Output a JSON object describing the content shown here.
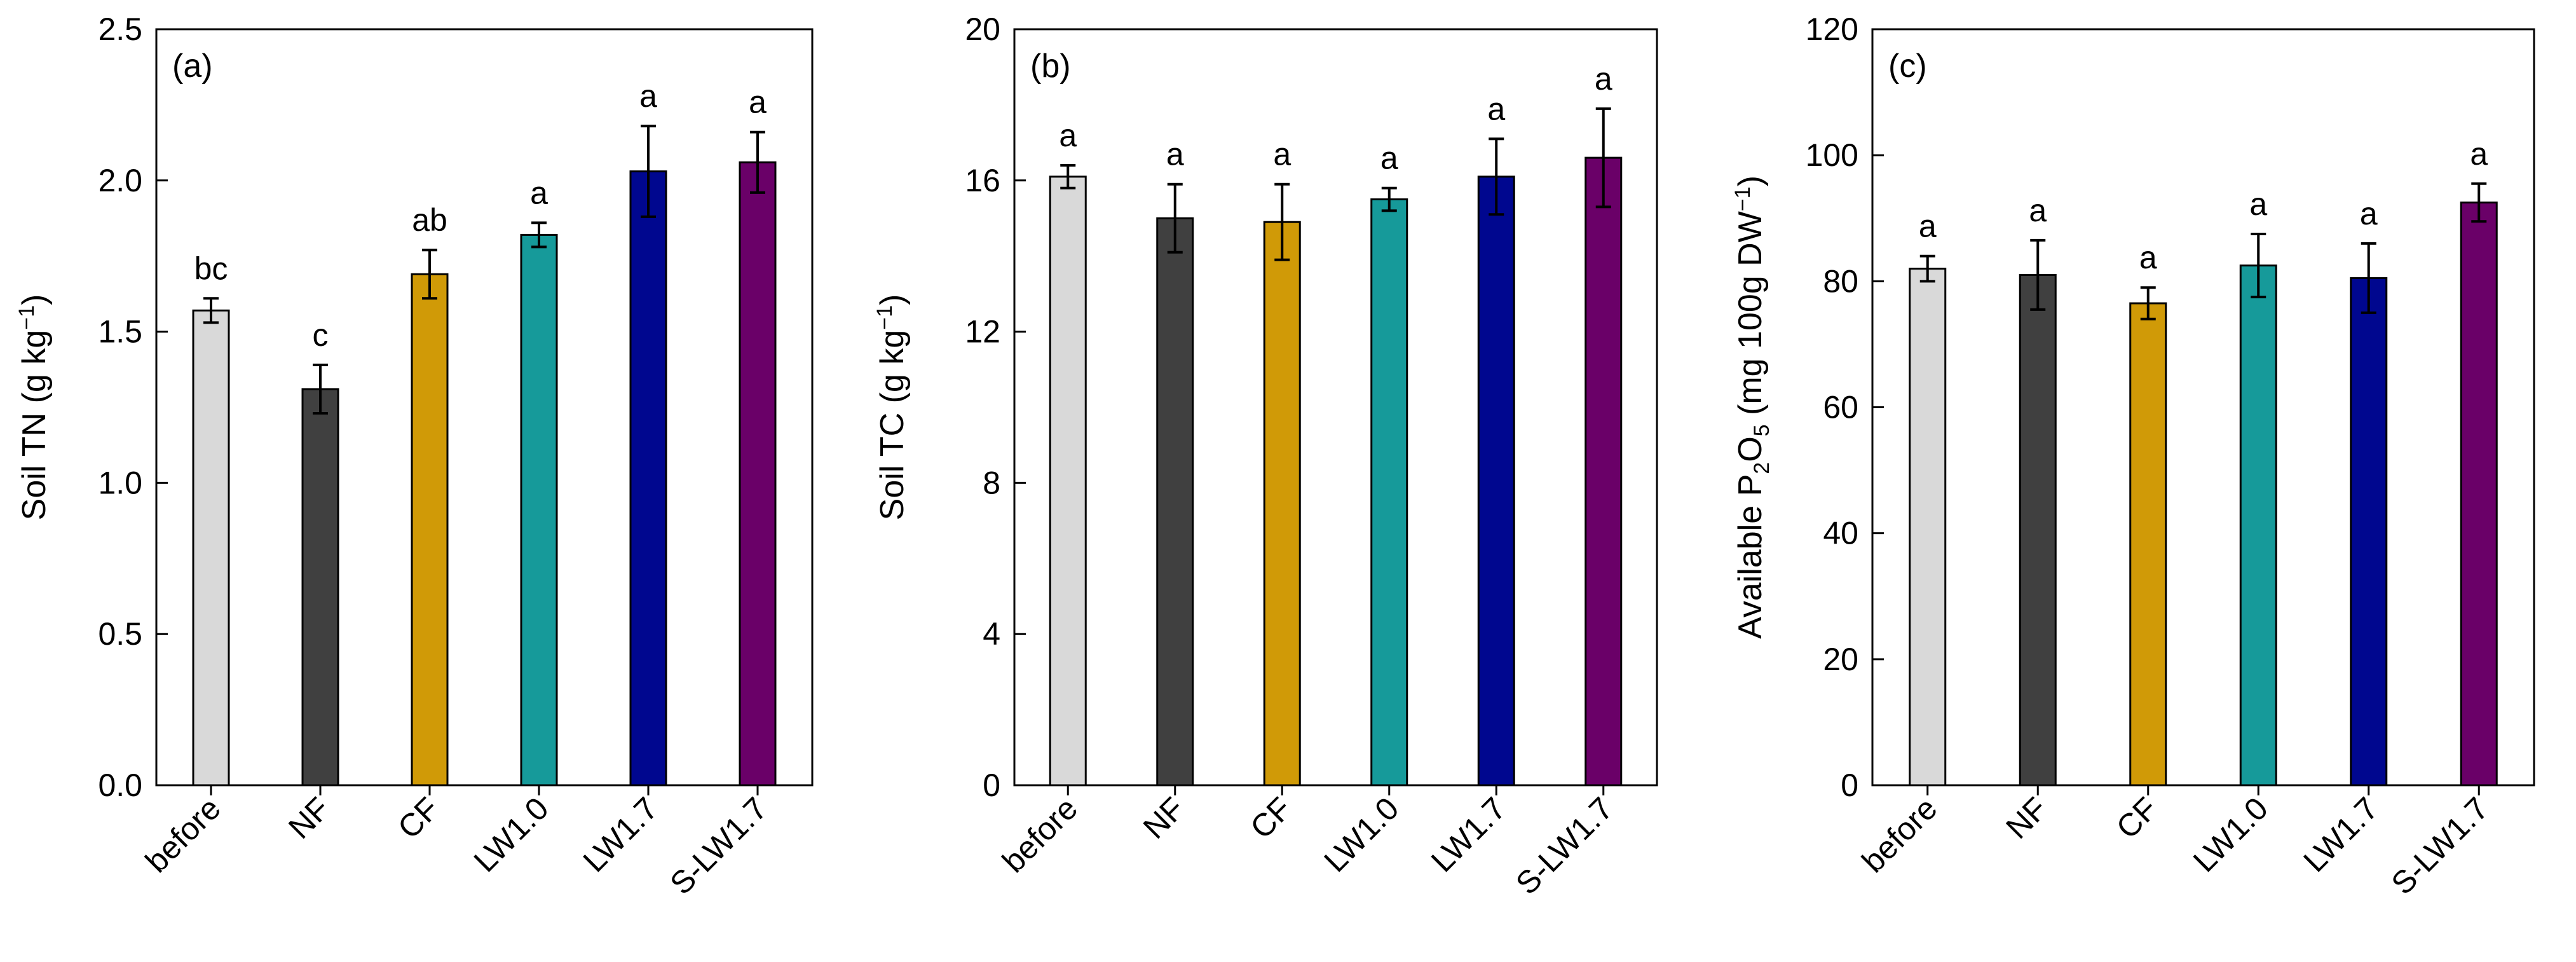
{
  "chart_data": [
    {
      "type": "bar",
      "panel_label": "(a)",
      "ylabel_parts": [
        "Soil TN (g kg",
        "−1",
        ")"
      ],
      "ylim": [
        0,
        2.5
      ],
      "yticks": [
        0.0,
        0.5,
        1.0,
        1.5,
        2.0,
        2.5
      ],
      "ytick_labels": [
        "0.0",
        "0.5",
        "1.0",
        "1.5",
        "2.0",
        "2.5"
      ],
      "categories": [
        "before",
        "NF",
        "CF",
        "LW1.0",
        "LW1.7",
        "S-LW1.7"
      ],
      "values": [
        1.57,
        1.31,
        1.69,
        1.82,
        2.03,
        2.06
      ],
      "errors": [
        0.04,
        0.08,
        0.08,
        0.04,
        0.15,
        0.1
      ],
      "significance": [
        "bc",
        "c",
        "ab",
        "a",
        "a",
        "a"
      ]
    },
    {
      "type": "bar",
      "panel_label": "(b)",
      "ylabel_parts": [
        "Soil TC (g kg",
        "−1",
        ")"
      ],
      "ylim": [
        0,
        20
      ],
      "yticks": [
        0,
        4,
        8,
        12,
        16,
        20
      ],
      "ytick_labels": [
        "0",
        "4",
        "8",
        "12",
        "16",
        "20"
      ],
      "categories": [
        "before",
        "NF",
        "CF",
        "LW1.0",
        "LW1.7",
        "S-LW1.7"
      ],
      "values": [
        16.1,
        15.0,
        14.9,
        15.5,
        16.1,
        16.6
      ],
      "errors": [
        0.3,
        0.9,
        1.0,
        0.3,
        1.0,
        1.3
      ],
      "significance": [
        "a",
        "a",
        "a",
        "a",
        "a",
        "a"
      ]
    },
    {
      "type": "bar",
      "panel_label": "(c)",
      "ylabel_parts": [
        "Available P",
        "2",
        "O",
        "5",
        " (mg 100g DW",
        "−1",
        ")"
      ],
      "ylim": [
        0,
        120
      ],
      "yticks": [
        0,
        20,
        40,
        60,
        80,
        100,
        120
      ],
      "ytick_labels": [
        "0",
        "20",
        "40",
        "60",
        "80",
        "100",
        "120"
      ],
      "categories": [
        "before",
        "NF",
        "CF",
        "LW1.0",
        "LW1.7",
        "S-LW1.7"
      ],
      "values": [
        82,
        81,
        76.5,
        82.5,
        80.5,
        92.5
      ],
      "errors": [
        2,
        5.5,
        2.5,
        5,
        5.5,
        3
      ],
      "significance": [
        "a",
        "a",
        "a",
        "a",
        "a",
        "a"
      ]
    }
  ],
  "colors": {
    "before": "#d9d9d9",
    "NF": "#404040",
    "CF": "#d09a07",
    "LW1.0": "#169a9a",
    "LW1.7": "#00078f",
    "S-LW1.7": "#6a0068",
    "axis": "#000000"
  }
}
